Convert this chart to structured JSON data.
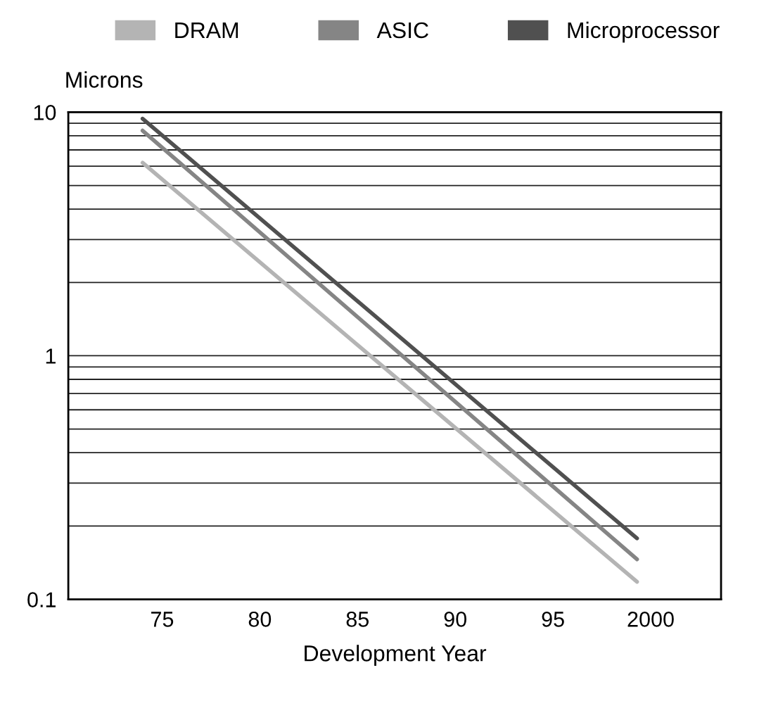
{
  "chart_data": {
    "type": "line",
    "xlabel": "Development Year",
    "ylabel": "Microns",
    "x": [
      1974,
      1999.3
    ],
    "series": [
      {
        "name": "DRAM",
        "color": "#b4b4b4",
        "values": [
          6.2,
          0.118
        ]
      },
      {
        "name": "ASIC",
        "color": "#858585",
        "values": [
          8.4,
          0.146
        ]
      },
      {
        "name": "Microprocessor",
        "color": "#505050",
        "values": [
          9.4,
          0.178
        ]
      }
    ],
    "log": "y",
    "xlim": [
      1970.2,
      2003.6
    ],
    "ylim": [
      0.1,
      10
    ],
    "xticks": [
      {
        "value": 1975,
        "label": "75"
      },
      {
        "value": 1980,
        "label": "80"
      },
      {
        "value": 1985,
        "label": "85"
      },
      {
        "value": 1990,
        "label": "90"
      },
      {
        "value": 1995,
        "label": "95"
      },
      2000
    ],
    "yticks": [
      {
        "value": 0.1,
        "label": "0.1"
      },
      {
        "value": 0.2,
        "label": null
      },
      {
        "value": 0.3,
        "label": null
      },
      {
        "value": 0.4,
        "label": null
      },
      {
        "value": 0.5,
        "label": null
      },
      {
        "value": 0.6,
        "label": null
      },
      {
        "value": 0.7,
        "label": null
      },
      {
        "value": 0.8,
        "label": null
      },
      {
        "value": 0.9,
        "label": null
      },
      1,
      {
        "value": 2,
        "label": null
      },
      {
        "value": 3,
        "label": null
      },
      {
        "value": 4,
        "label": null
      },
      {
        "value": 5,
        "label": null
      },
      {
        "value": 6,
        "label": null
      },
      {
        "value": 7,
        "label": null
      },
      {
        "value": 8,
        "label": null
      },
      {
        "value": 9,
        "label": null
      },
      10
    ],
    "grid": "y",
    "legend": "top",
    "marker": "none",
    "line_style": "solid"
  }
}
